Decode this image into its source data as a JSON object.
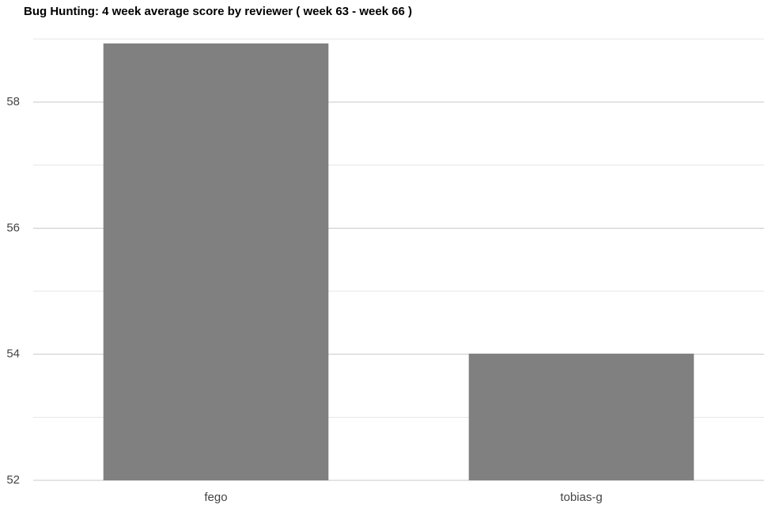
{
  "chart_data": {
    "type": "bar",
    "title": "Bug Hunting: 4 week average score by reviewer ( week 63 - week 66 )",
    "categories": [
      "fego",
      "tobias-g"
    ],
    "values": [
      58.93,
      54.01
    ],
    "color": "#808080",
    "ylim": [
      52,
      59
    ],
    "yticks": [
      52,
      54,
      56,
      58
    ],
    "minor_yticks": [
      53,
      55,
      57,
      59
    ],
    "grid": true
  }
}
